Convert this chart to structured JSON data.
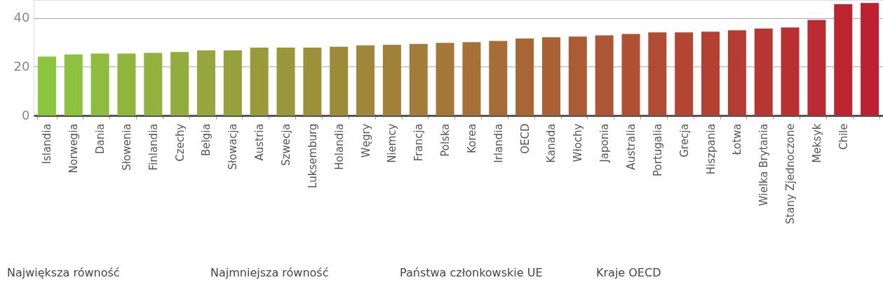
{
  "chart_data": {
    "type": "bar",
    "categories": [
      "Islandia",
      "Norwegia",
      "Dania",
      "Słowenia",
      "Finlandia",
      "Czechy",
      "Belgia",
      "Słowacja",
      "Austria",
      "Szwecja",
      "Luksemburg",
      "Holandia",
      "Węgry",
      "Niemcy",
      "Francja",
      "Polska",
      "Korea",
      "Irlandia",
      "OECD",
      "Kanada",
      "Włochy",
      "Japonia",
      "Australia",
      "Portugalia",
      "Grecja",
      "Hiszpania",
      "Łotwa",
      "Wielka Brytania",
      "Stany Zjednoczone",
      "Meksyk",
      "Chile",
      null
    ],
    "values": [
      24.2,
      25.1,
      25.4,
      25.4,
      25.7,
      26.1,
      26.7,
      26.7,
      27.9,
      27.9,
      27.9,
      28.2,
      28.8,
      29.0,
      29.4,
      29.8,
      30.1,
      30.6,
      31.6,
      32.1,
      32.4,
      32.9,
      33.5,
      34.1,
      34.1,
      34.4,
      35.0,
      35.7,
      36.1,
      39.2,
      45.7,
      46.2
    ],
    "colors": [
      "#8cc63f",
      "#8ec13f",
      "#8fbb3e",
      "#91b63e",
      "#92b13d",
      "#94ab3d",
      "#95a63c",
      "#97a13c",
      "#999b3b",
      "#9a963b",
      "#9c913a",
      "#9d8b3a",
      "#9f8639",
      "#a18139",
      "#a27c38",
      "#a47638",
      "#a57137",
      "#a76c37",
      "#a86636",
      "#aa6136",
      "#ac5c35",
      "#ad5635",
      "#af5134",
      "#b04c34",
      "#b24633",
      "#b34133",
      "#b53c32",
      "#b73632",
      "#b83131",
      "#ba2c31",
      "#bb2630",
      "#bd2130"
    ],
    "ylim": [
      0,
      47.4
    ],
    "yticks": [
      0,
      20,
      40
    ],
    "grid": "y",
    "annotations": [
      "Największa równość",
      "Najmniejsza równość",
      "Państwa członkowskie UE",
      "Kraje OECD"
    ]
  }
}
